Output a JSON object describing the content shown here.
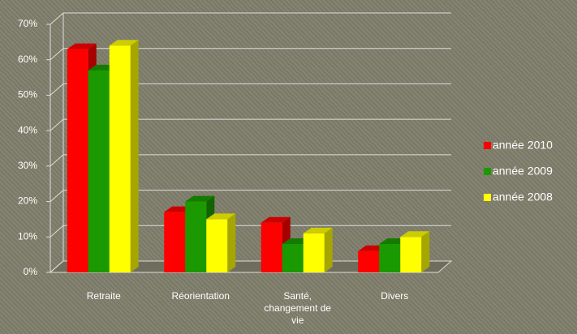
{
  "chart_data": {
    "type": "bar3d",
    "categories": [
      "Retraite",
      "Réorientation",
      "Santé, changement de vie",
      "Divers"
    ],
    "series": [
      {
        "name": "année 2010",
        "color": "#ff0000",
        "values": [
          63,
          17,
          14,
          6
        ]
      },
      {
        "name": "année 2009",
        "color": "#1a9a00",
        "values": [
          57,
          20,
          8,
          8
        ]
      },
      {
        "name": "année 2008",
        "color": "#ffff00",
        "values": [
          64,
          15,
          11,
          10
        ]
      }
    ],
    "ylim": [
      0,
      70
    ],
    "yticks": [
      {
        "value": 0,
        "label": "0%"
      },
      {
        "value": 10,
        "label": "10%"
      },
      {
        "value": 20,
        "label": "20%"
      },
      {
        "value": 30,
        "label": "30%"
      },
      {
        "value": 40,
        "label": "40%"
      },
      {
        "value": 50,
        "label": "50%"
      },
      {
        "value": 60,
        "label": "60%"
      },
      {
        "value": 70,
        "label": "70%"
      }
    ],
    "grid": true,
    "legend": "right"
  }
}
